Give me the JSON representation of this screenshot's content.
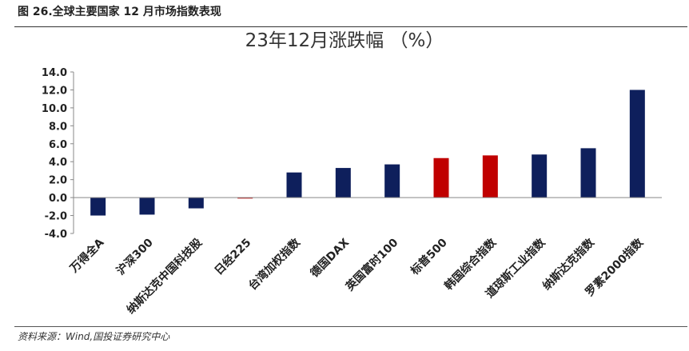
{
  "figure": {
    "caption": "图 26.全球主要国家 12 月市场指数表现",
    "source": "资料来源：Wind,国投证券研究中心"
  },
  "chart_data": {
    "type": "bar",
    "title": "23年12月涨跌幅 （%）",
    "xlabel": "",
    "ylabel": "",
    "ylim": [
      -4.0,
      14.0
    ],
    "yticks": [
      -4.0,
      -2.0,
      0.0,
      2.0,
      4.0,
      6.0,
      8.0,
      10.0,
      12.0,
      14.0
    ],
    "ytick_labels": [
      "-4.0",
      "-2.0",
      "0.0",
      "2.0",
      "4.0",
      "6.0",
      "8.0",
      "10.0",
      "12.0",
      "14.0"
    ],
    "grid": false,
    "legend": "none",
    "categories": [
      "万得全A",
      "沪深300",
      "纳斯达克中国科技股",
      "日经225",
      "台湾加权指数",
      "德国DAX",
      "英国富时100",
      "标普500",
      "韩国综合指数",
      "道琼斯工业指数",
      "纳斯达克指数",
      "罗素2000指数"
    ],
    "values": [
      -2.0,
      -1.9,
      -1.2,
      -0.1,
      2.8,
      3.3,
      3.7,
      4.4,
      4.7,
      4.8,
      5.5,
      12.0
    ],
    "colors": [
      "#0e1f5c",
      "#0e1f5c",
      "#0e1f5c",
      "#c00000",
      "#0e1f5c",
      "#0e1f5c",
      "#0e1f5c",
      "#c00000",
      "#c00000",
      "#0e1f5c",
      "#0e1f5c",
      "#0e1f5c"
    ]
  }
}
